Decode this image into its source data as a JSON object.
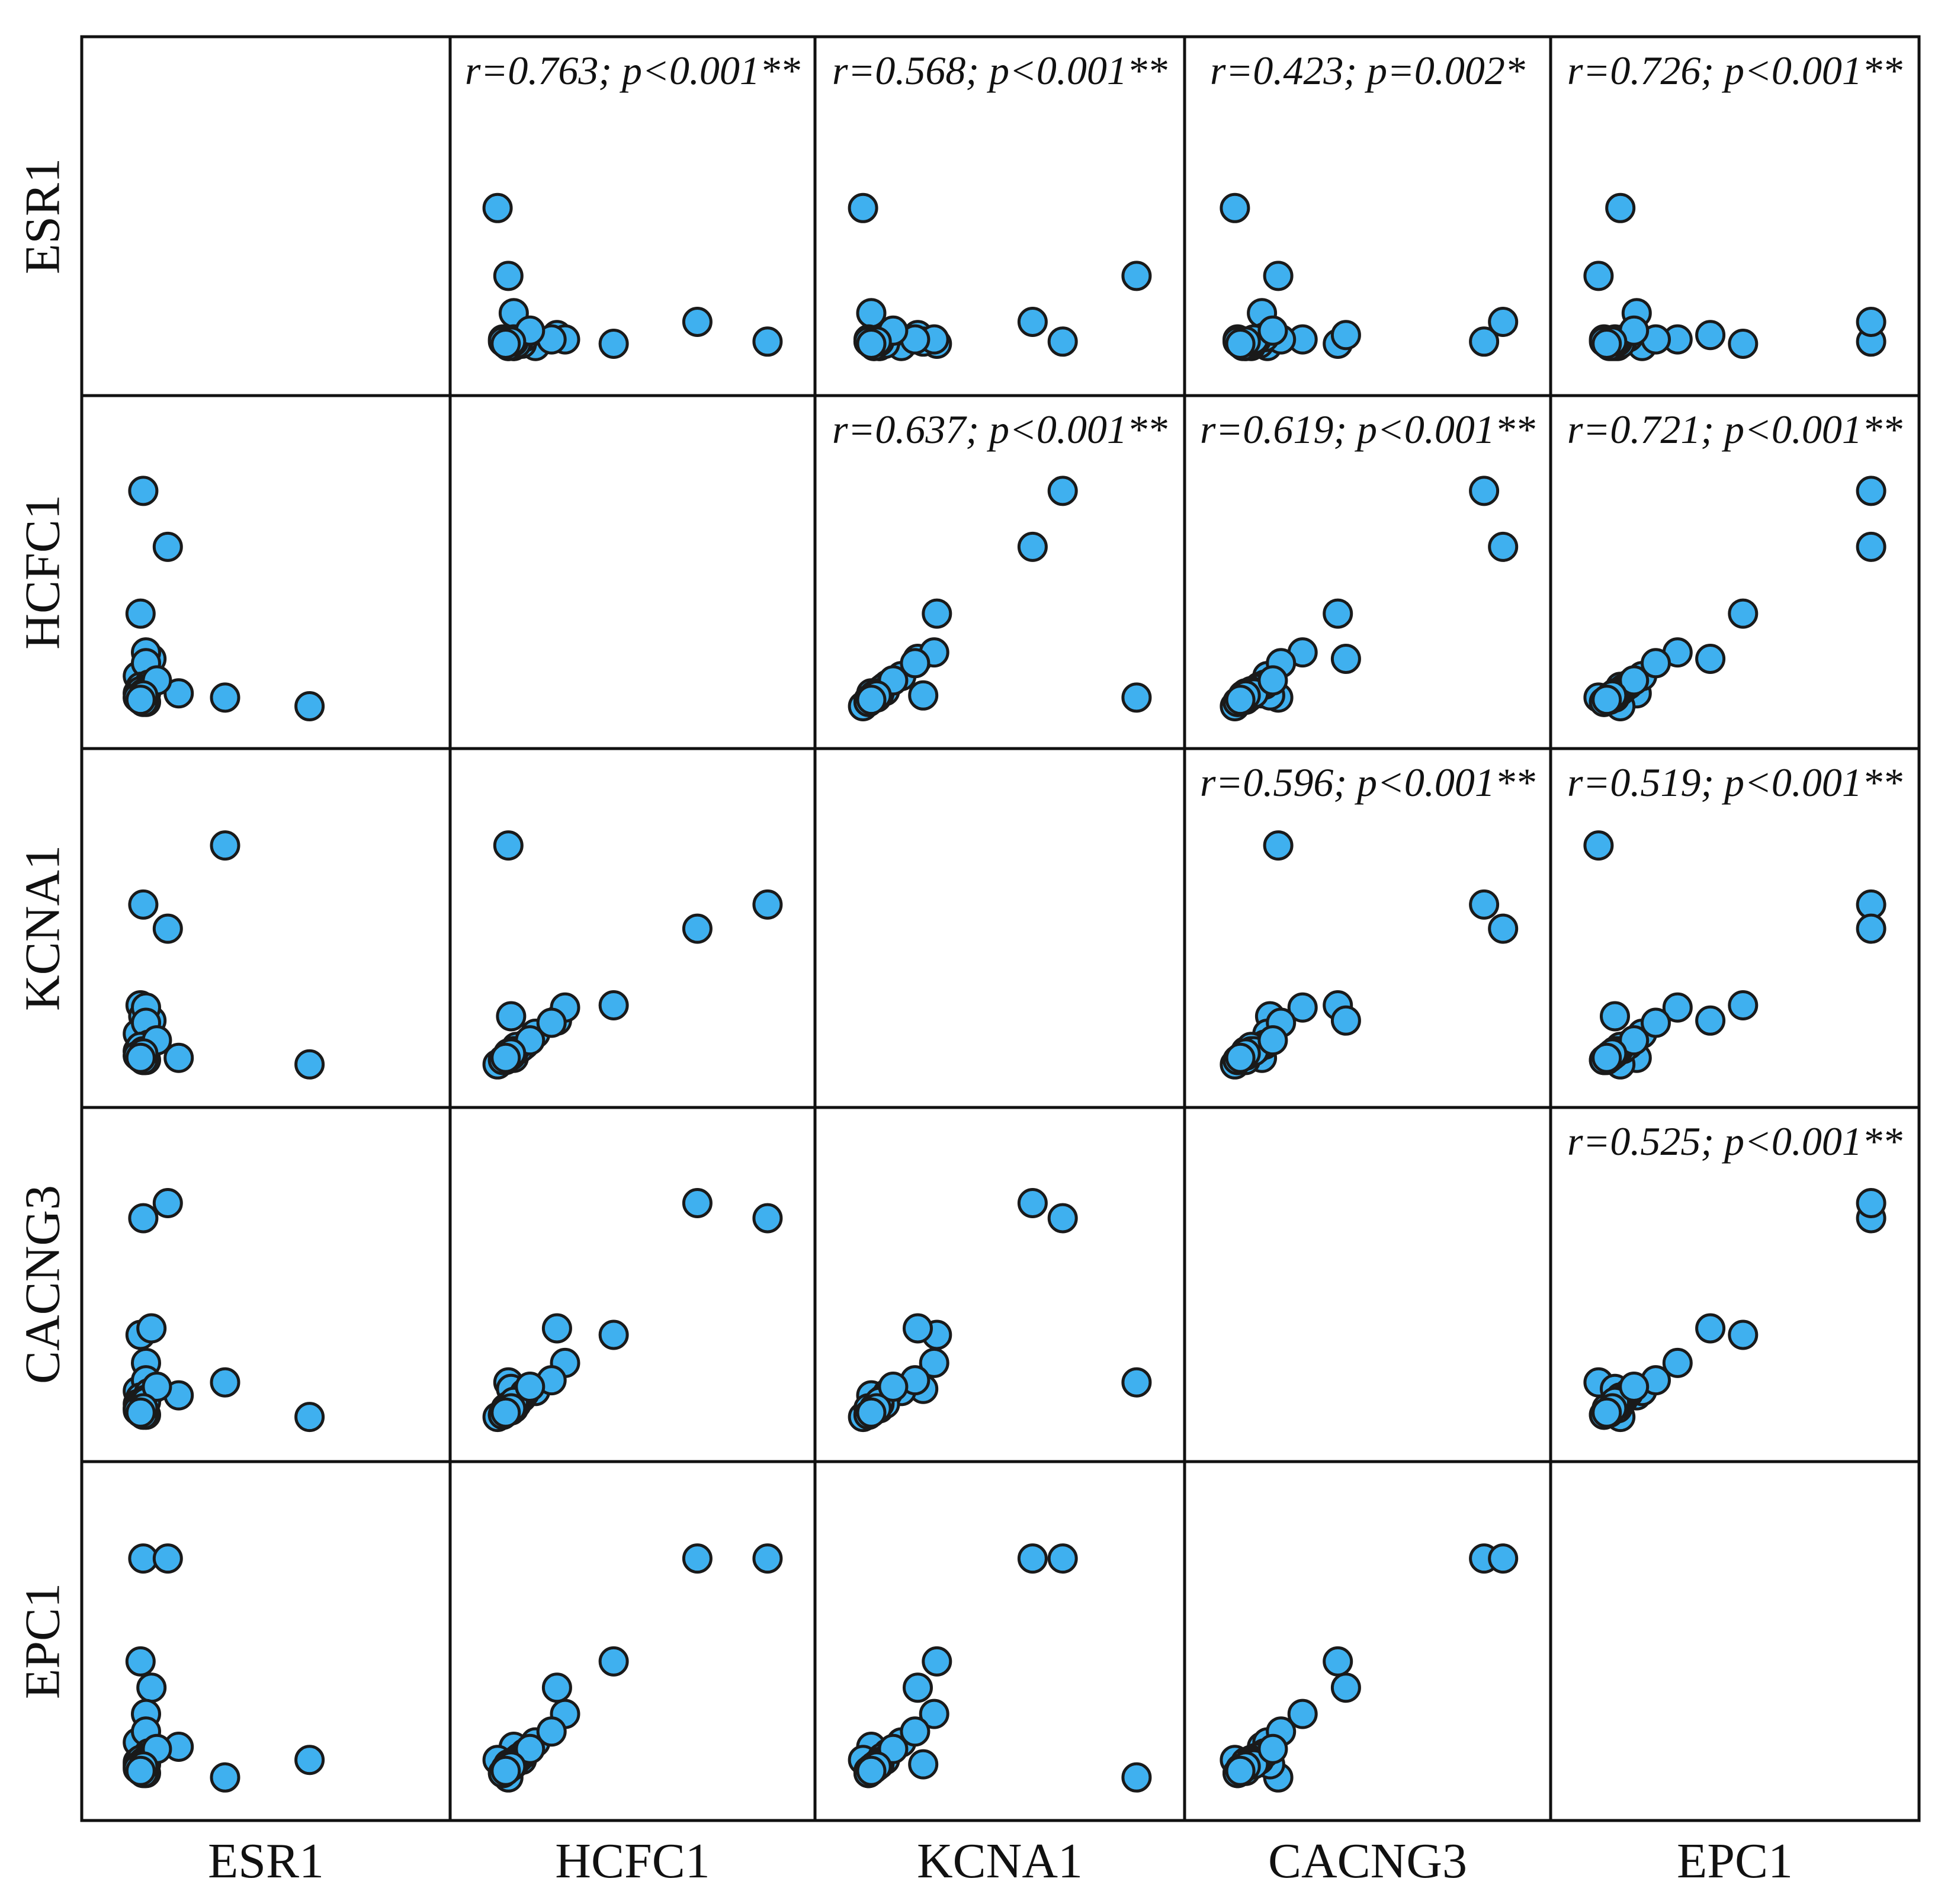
{
  "chart_data": {
    "type": "scatter",
    "subtype": "scatter-matrix",
    "variables": [
      "ESR1",
      "HCFC1",
      "KCNA1",
      "CACNG3",
      "EPC1"
    ],
    "point_color": "#3fb0ef",
    "point_stroke": "#1a1a1a",
    "frame_color": "#111111",
    "axis_range": [
      0,
      1
    ],
    "grid": false,
    "annotations": [
      {
        "row": 0,
        "col": 1,
        "text": "r=0.763; p<0.001**"
      },
      {
        "row": 0,
        "col": 2,
        "text": "r=0.568; p<0.001**"
      },
      {
        "row": 0,
        "col": 3,
        "text": "r=0.423; p=0.002*"
      },
      {
        "row": 0,
        "col": 4,
        "text": "r=0.726; p<0.001**"
      },
      {
        "row": 1,
        "col": 2,
        "text": "r=0.637; p<0.001**"
      },
      {
        "row": 1,
        "col": 3,
        "text": "r=0.619; p<0.001**"
      },
      {
        "row": 1,
        "col": 4,
        "text": "r=0.721; p<0.001**"
      },
      {
        "row": 2,
        "col": 3,
        "text": "r=0.596; p<0.001**"
      },
      {
        "row": 2,
        "col": 4,
        "text": "r=0.519; p<0.001**"
      },
      {
        "row": 3,
        "col": 4,
        "text": "r=0.525; p<0.001**"
      }
    ],
    "samples": {
      "ESR1": [
        0.05,
        0.14,
        0.04,
        0.08,
        0.18,
        0.35,
        0.66,
        0.05,
        0.06,
        0.03,
        0.06,
        0.04,
        0.05,
        0.03,
        0.07,
        0.05,
        0.04,
        0.06,
        0.05,
        0.03,
        0.04,
        0.05,
        0.06,
        0.05,
        0.04,
        0.03,
        0.05,
        0.04,
        0.06,
        0.05,
        0.1,
        0.03,
        0.05,
        0.04
      ],
      "HCFC1": [
        1.0,
        0.74,
        0.43,
        0.22,
        0.06,
        0.04,
        0.0,
        0.05,
        0.25,
        0.14,
        0.2,
        0.09,
        0.03,
        0.06,
        0.1,
        0.05,
        0.03,
        0.08,
        0.04,
        0.06,
        0.07,
        0.05,
        0.02,
        0.06,
        0.03,
        0.04,
        0.05,
        0.03,
        0.06,
        0.02,
        0.12,
        0.04,
        0.05,
        0.03
      ],
      "KCNA1": [
        0.73,
        0.62,
        0.27,
        0.2,
        0.03,
        1.0,
        0.0,
        0.22,
        0.26,
        0.14,
        0.19,
        0.08,
        0.02,
        0.06,
        0.09,
        0.04,
        0.03,
        0.07,
        0.05,
        0.06,
        0.08,
        0.04,
        0.02,
        0.06,
        0.03,
        0.04,
        0.05,
        0.03,
        0.06,
        0.02,
        0.11,
        0.04,
        0.05,
        0.03
      ],
      "CACNG3": [
        0.93,
        1.0,
        0.39,
        0.42,
        0.11,
        0.17,
        0.01,
        0.14,
        0.26,
        0.13,
        0.18,
        0.1,
        0.05,
        0.07,
        0.12,
        0.04,
        0.03,
        0.09,
        0.06,
        0.05,
        0.07,
        0.05,
        0.02,
        0.07,
        0.03,
        0.05,
        0.06,
        0.03,
        0.08,
        0.02,
        0.15,
        0.04,
        0.05,
        0.03
      ],
      "EPC1": [
        1.0,
        1.0,
        0.53,
        0.41,
        0.14,
        0.0,
        0.08,
        0.06,
        0.29,
        0.16,
        0.21,
        0.08,
        0.03,
        0.06,
        0.11,
        0.05,
        0.04,
        0.09,
        0.06,
        0.07,
        0.08,
        0.05,
        0.02,
        0.07,
        0.04,
        0.05,
        0.06,
        0.03,
        0.06,
        0.02,
        0.13,
        0.04,
        0.05,
        0.03
      ]
    }
  }
}
